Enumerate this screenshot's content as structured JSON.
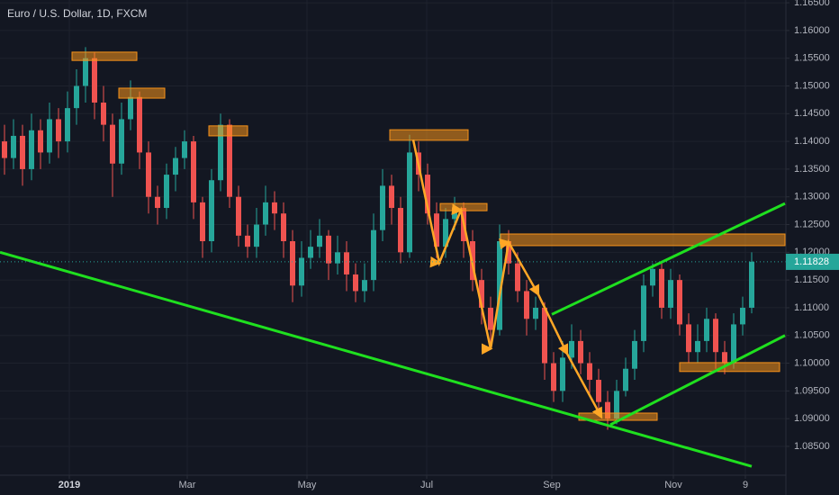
{
  "chart_data": {
    "type": "candlestick",
    "title": "Euro / U.S. Dollar, 1D, FXCM",
    "up_color": "#26a69a",
    "down_color": "#ef5350",
    "grid": true,
    "xlim": [
      -0.5,
      86.8
    ],
    "ylim": [
      1.0798,
      1.1655
    ],
    "xticks": [
      {
        "value": 7.2,
        "label": "2019"
      },
      {
        "value": 20.3,
        "label": "Mar"
      },
      {
        "value": 33.6,
        "label": "May"
      },
      {
        "value": 46.9,
        "label": "Jul"
      },
      {
        "value": 60.8,
        "label": "Sep"
      },
      {
        "value": 74.3,
        "label": "Nov"
      },
      {
        "value": 82.3,
        "label": "9"
      }
    ],
    "yticks": [
      {
        "value": 1.085,
        "label": "1.08500"
      },
      {
        "value": 1.09,
        "label": "1.09000"
      },
      {
        "value": 1.095,
        "label": "1.09500"
      },
      {
        "value": 1.1,
        "label": "1.10000"
      },
      {
        "value": 1.105,
        "label": "1.10500"
      },
      {
        "value": 1.11,
        "label": "1.11000"
      },
      {
        "value": 1.115,
        "label": "1.11500"
      },
      {
        "value": 1.12,
        "label": "1.12000"
      },
      {
        "value": 1.125,
        "label": "1.12500"
      },
      {
        "value": 1.13,
        "label": "1.13000"
      },
      {
        "value": 1.135,
        "label": "1.13500"
      },
      {
        "value": 1.14,
        "label": "1.14000"
      },
      {
        "value": 1.145,
        "label": "1.14500"
      },
      {
        "value": 1.15,
        "label": "1.15000"
      },
      {
        "value": 1.155,
        "label": "1.15500"
      },
      {
        "value": 1.16,
        "label": "1.16000"
      },
      {
        "value": 1.165,
        "label": "1.16500"
      }
    ],
    "last_price": 1.11828,
    "last_price_color": "#26a69a",
    "open": [
      1.14,
      1.137,
      1.141,
      1.135,
      1.142,
      1.138,
      1.144,
      1.14,
      1.146,
      1.15,
      1.155,
      1.147,
      1.143,
      1.136,
      1.144,
      1.148,
      1.138,
      1.13,
      1.128,
      1.134,
      1.137,
      1.14,
      1.129,
      1.122,
      1.133,
      1.143,
      1.13,
      1.123,
      1.121,
      1.125,
      1.129,
      1.127,
      1.122,
      1.114,
      1.119,
      1.121,
      1.123,
      1.118,
      1.12,
      1.116,
      1.113,
      1.115,
      1.124,
      1.132,
      1.128,
      1.12,
      1.138,
      1.134,
      1.127,
      1.121,
      1.126,
      1.128,
      1.122,
      1.115,
      1.11,
      1.106,
      1.122,
      1.118,
      1.113,
      1.108,
      1.11,
      1.1,
      1.095,
      1.101,
      1.104,
      1.1,
      1.097,
      1.093,
      1.09,
      1.095,
      1.099,
      1.104,
      1.114,
      1.117,
      1.11,
      1.115,
      1.107,
      1.102,
      1.104,
      1.108,
      1.102,
      1.1,
      1.107,
      1.11
    ],
    "high": [
      1.143,
      1.144,
      1.143,
      1.145,
      1.144,
      1.147,
      1.146,
      1.149,
      1.153,
      1.157,
      1.156,
      1.15,
      1.145,
      1.147,
      1.151,
      1.149,
      1.14,
      1.132,
      1.136,
      1.139,
      1.142,
      1.141,
      1.13,
      1.135,
      1.145,
      1.144,
      1.132,
      1.125,
      1.128,
      1.132,
      1.131,
      1.129,
      1.124,
      1.122,
      1.124,
      1.126,
      1.124,
      1.123,
      1.122,
      1.118,
      1.118,
      1.127,
      1.135,
      1.134,
      1.13,
      1.1412,
      1.14,
      1.136,
      1.129,
      1.128,
      1.13,
      1.129,
      1.124,
      1.117,
      1.112,
      1.125,
      1.124,
      1.12,
      1.115,
      1.112,
      1.111,
      1.102,
      1.104,
      1.107,
      1.106,
      1.102,
      1.099,
      1.095,
      1.097,
      1.101,
      1.106,
      1.116,
      1.118,
      1.118,
      1.117,
      1.116,
      1.109,
      1.107,
      1.11,
      1.109,
      1.104,
      1.109,
      1.112,
      1.12
    ],
    "low": [
      1.134,
      1.135,
      1.132,
      1.133,
      1.135,
      1.136,
      1.137,
      1.138,
      1.143,
      1.147,
      1.144,
      1.14,
      1.13,
      1.134,
      1.142,
      1.135,
      1.127,
      1.125,
      1.126,
      1.131,
      1.135,
      1.126,
      1.119,
      1.12,
      1.131,
      1.128,
      1.121,
      1.119,
      1.119,
      1.123,
      1.124,
      1.119,
      1.111,
      1.112,
      1.117,
      1.119,
      1.115,
      1.116,
      1.113,
      1.111,
      1.111,
      1.113,
      1.122,
      1.125,
      1.118,
      1.119,
      1.131,
      1.125,
      1.119,
      1.119,
      1.124,
      1.119,
      1.113,
      1.107,
      1.103,
      1.105,
      1.116,
      1.111,
      1.105,
      1.106,
      1.097,
      1.093,
      1.093,
      1.099,
      1.098,
      1.094,
      1.091,
      1.088,
      1.089,
      1.094,
      1.097,
      1.102,
      1.112,
      1.108,
      1.108,
      1.105,
      1.1,
      1.1,
      1.102,
      1.099,
      1.098,
      1.099,
      1.105,
      1.109
    ],
    "close": [
      1.137,
      1.141,
      1.135,
      1.142,
      1.138,
      1.144,
      1.14,
      1.146,
      1.15,
      1.155,
      1.147,
      1.143,
      1.136,
      1.144,
      1.148,
      1.138,
      1.13,
      1.128,
      1.134,
      1.137,
      1.14,
      1.129,
      1.122,
      1.133,
      1.143,
      1.13,
      1.123,
      1.121,
      1.125,
      1.129,
      1.127,
      1.122,
      1.114,
      1.119,
      1.121,
      1.123,
      1.118,
      1.12,
      1.116,
      1.113,
      1.115,
      1.124,
      1.132,
      1.128,
      1.12,
      1.138,
      1.134,
      1.127,
      1.121,
      1.126,
      1.128,
      1.122,
      1.115,
      1.11,
      1.106,
      1.122,
      1.118,
      1.113,
      1.108,
      1.11,
      1.1,
      1.095,
      1.101,
      1.104,
      1.1,
      1.097,
      1.093,
      1.09,
      1.095,
      1.099,
      1.104,
      1.114,
      1.117,
      1.11,
      1.115,
      1.107,
      1.102,
      1.104,
      1.108,
      1.102,
      1.1,
      1.107,
      1.11,
      1.1183
    ],
    "zones": {
      "color": "#f7931a",
      "items": [
        {
          "x": [
            7.5,
            14.7
          ],
          "y": [
            1.1546,
            1.1561
          ]
        },
        {
          "x": [
            12.7,
            17.8
          ],
          "y": [
            1.1478,
            1.1496
          ]
        },
        {
          "x": [
            22.7,
            27.0
          ],
          "y": [
            1.141,
            1.1428
          ]
        },
        {
          "x": [
            42.8,
            51.5
          ],
          "y": [
            1.1402,
            1.1421
          ]
        },
        {
          "x": [
            48.4,
            53.6
          ],
          "y": [
            1.1275,
            1.1288
          ]
        },
        {
          "x": [
            55.1,
            86.7
          ],
          "y": [
            1.1212,
            1.1233
          ]
        },
        {
          "x": [
            63.8,
            72.5
          ],
          "y": [
            1.0897,
            1.091
          ]
        },
        {
          "x": [
            75.0,
            86.1
          ],
          "y": [
            1.0985,
            1.1001
          ]
        }
      ]
    },
    "trendlines": {
      "color": "#1fe01f",
      "items": [
        {
          "x": [
            -0.5,
            83.0
          ],
          "y": [
            1.12,
            1.0814
          ]
        },
        {
          "x": [
            60.8,
            86.7
          ],
          "y": [
            1.1088,
            1.1288
          ]
        },
        {
          "x": [
            67.3,
            86.7
          ],
          "y": [
            1.0889,
            1.105
          ]
        }
      ]
    },
    "path": {
      "color": "#ffa726",
      "x": [
        45.4,
        48.3,
        50.7,
        54.0,
        56.0,
        59.3,
        62.5,
        66.3
      ],
      "y": [
        1.1403,
        1.1181,
        1.1276,
        1.1026,
        1.1218,
        1.1124,
        1.1017,
        1.0903
      ]
    }
  }
}
